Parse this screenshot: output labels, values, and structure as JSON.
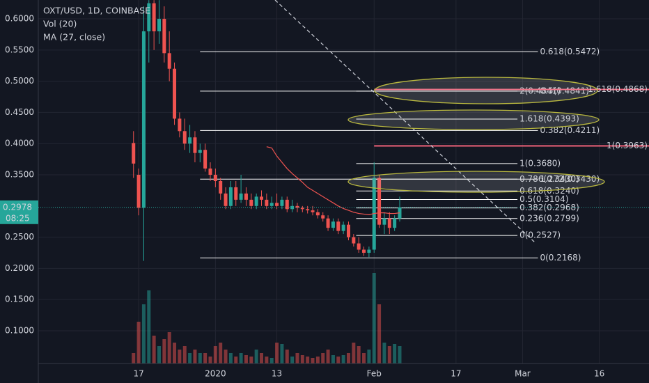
{
  "chart_data": {
    "type": "candlestick",
    "title": "OXT/USD, 1D, COINBASE",
    "indicators": [
      "Vol (20)",
      "MA (27, close)"
    ],
    "ylim": [
      0.0475,
      0.6302
    ],
    "yticks": [
      {
        "value": 0.6,
        "label": "0.6000"
      },
      {
        "value": 0.55,
        "label": "0.5500"
      },
      {
        "value": 0.5,
        "label": "0.5000"
      },
      {
        "value": 0.45,
        "label": "0.4500"
      },
      {
        "value": 0.4,
        "label": "0.4000"
      },
      {
        "value": 0.35,
        "label": "0.3500"
      },
      {
        "value": 0.25,
        "label": "0.2500"
      },
      {
        "value": 0.2,
        "label": "0.2000"
      },
      {
        "value": 0.15,
        "label": "0.1500"
      },
      {
        "value": 0.1,
        "label": "0.1000"
      }
    ],
    "xlim": [
      -18.6,
      100.7
    ],
    "xticks": [
      {
        "value": 1,
        "label": "17"
      },
      {
        "value": 16,
        "label": "2020"
      },
      {
        "value": 28,
        "label": "13"
      },
      {
        "value": 47,
        "label": "Feb"
      },
      {
        "value": 63,
        "label": "17"
      },
      {
        "value": 76,
        "label": "Mar"
      },
      {
        "value": 91,
        "label": "16"
      }
    ],
    "grid": true,
    "up_color": "#26a69a",
    "down_color": "#ef5350",
    "open": [
      0.401,
      0.35,
      0.297,
      0.58,
      0.625,
      0.58,
      0.6,
      0.545,
      0.52,
      0.44,
      0.42,
      0.4,
      0.41,
      0.385,
      0.39,
      0.36,
      0.35,
      0.34,
      0.32,
      0.3,
      0.33,
      0.31,
      0.32,
      0.31,
      0.3,
      0.315,
      0.31,
      0.3,
      0.305,
      0.3,
      0.31,
      0.295,
      0.3,
      0.297,
      0.295,
      0.293,
      0.29,
      0.285,
      0.28,
      0.265,
      0.275,
      0.26,
      0.27,
      0.25,
      0.24,
      0.23,
      0.225,
      0.23,
      0.345,
      0.27,
      0.28,
      0.265,
      0.28
    ],
    "high": [
      0.42,
      0.36,
      0.62,
      0.63,
      0.63,
      0.63,
      0.62,
      0.58,
      0.53,
      0.45,
      0.44,
      0.43,
      0.42,
      0.4,
      0.4,
      0.37,
      0.36,
      0.345,
      0.33,
      0.34,
      0.34,
      0.35,
      0.33,
      0.32,
      0.32,
      0.325,
      0.32,
      0.315,
      0.32,
      0.315,
      0.315,
      0.31,
      0.305,
      0.3,
      0.3,
      0.3,
      0.295,
      0.29,
      0.285,
      0.28,
      0.28,
      0.275,
      0.275,
      0.255,
      0.25,
      0.235,
      0.235,
      0.37,
      0.35,
      0.29,
      0.29,
      0.285,
      0.315
    ],
    "low": [
      0.345,
      0.285,
      0.212,
      0.53,
      0.55,
      0.56,
      0.53,
      0.5,
      0.43,
      0.41,
      0.39,
      0.385,
      0.37,
      0.37,
      0.355,
      0.34,
      0.33,
      0.31,
      0.295,
      0.295,
      0.3,
      0.305,
      0.3,
      0.295,
      0.295,
      0.3,
      0.295,
      0.295,
      0.295,
      0.295,
      0.29,
      0.29,
      0.29,
      0.29,
      0.288,
      0.285,
      0.28,
      0.275,
      0.26,
      0.26,
      0.255,
      0.255,
      0.245,
      0.235,
      0.225,
      0.22,
      0.218,
      0.225,
      0.265,
      0.255,
      0.255,
      0.26,
      0.275
    ],
    "close": [
      0.368,
      0.297,
      0.58,
      0.625,
      0.58,
      0.6,
      0.545,
      0.52,
      0.44,
      0.42,
      0.4,
      0.41,
      0.385,
      0.39,
      0.36,
      0.35,
      0.34,
      0.32,
      0.3,
      0.33,
      0.31,
      0.32,
      0.31,
      0.3,
      0.315,
      0.31,
      0.3,
      0.305,
      0.3,
      0.31,
      0.295,
      0.3,
      0.297,
      0.295,
      0.293,
      0.29,
      0.285,
      0.28,
      0.265,
      0.275,
      0.26,
      0.27,
      0.25,
      0.24,
      0.23,
      0.225,
      0.23,
      0.345,
      0.27,
      0.28,
      0.265,
      0.28,
      0.2978
    ],
    "volume": [
      15,
      60,
      85,
      105,
      40,
      25,
      35,
      45,
      30,
      20,
      25,
      15,
      20,
      15,
      15,
      10,
      25,
      30,
      20,
      15,
      10,
      15,
      12,
      10,
      20,
      15,
      10,
      8,
      30,
      28,
      20,
      10,
      15,
      12,
      10,
      8,
      10,
      15,
      20,
      12,
      10,
      12,
      15,
      30,
      25,
      15,
      20,
      130,
      85,
      30,
      25,
      28,
      25
    ],
    "vlim": [
      0,
      250
    ],
    "ma": {
      "color": "#ef5350",
      "values": [
        null,
        null,
        null,
        null,
        null,
        null,
        null,
        null,
        null,
        null,
        null,
        null,
        null,
        null,
        null,
        null,
        null,
        null,
        null,
        null,
        null,
        null,
        null,
        null,
        null,
        null,
        0.395,
        0.393,
        0.38,
        0.37,
        0.36,
        0.352,
        0.345,
        0.338,
        0.33,
        0.325,
        0.32,
        0.315,
        0.31,
        0.305,
        0.3,
        0.296,
        0.293,
        0.29,
        0.288,
        0.287,
        0.286,
        0.288,
        0.289,
        0.289,
        0.288,
        0.288,
        0.289
      ]
    },
    "last_price": {
      "value": 0.2978,
      "label": "0.2978",
      "countdown": "08:25"
    },
    "fib_levels": [
      {
        "start": 13,
        "end": 79,
        "color": "#ffffff",
        "levels": [
          {
            "label": "0.618(0.5472)",
            "value": 0.5472
          },
          {
            "label": "0.5(0.4841)",
            "value": 0.4841
          },
          {
            "label": "0.382(0.4211)",
            "value": 0.4211
          },
          {
            "label": "1.272(0.3430)",
            "value": 0.343
          },
          {
            "label": "0(0.2168)",
            "value": 0.2168
          }
        ]
      },
      {
        "start": 43.5,
        "end": 75,
        "color": "#ffffff",
        "levels": [
          {
            "label": "2(0.4841)",
            "value": 0.4841
          },
          {
            "label": "1.618(0.4393)",
            "value": 0.4393
          },
          {
            "label": "1(0.3680)",
            "value": 0.368
          },
          {
            "label": "0.786(0.3430)",
            "value": 0.343
          },
          {
            "label": "0.618(0.3240)",
            "value": 0.324
          },
          {
            "label": "0.5(0.3104)",
            "value": 0.3104
          },
          {
            "label": "0.382(0.2968)",
            "value": 0.2968
          },
          {
            "label": "0.236(0.2799)",
            "value": 0.2799
          },
          {
            "label": "0(0.2527)",
            "value": 0.2527
          }
        ]
      },
      {
        "start": 47,
        "end": 100.7,
        "color": "#f0627a",
        "levels": [
          {
            "label": "1.618(0.4868)",
            "value": 0.4868
          },
          {
            "label": "1(0.3963)",
            "value": 0.3963
          }
        ]
      }
    ]
  }
}
